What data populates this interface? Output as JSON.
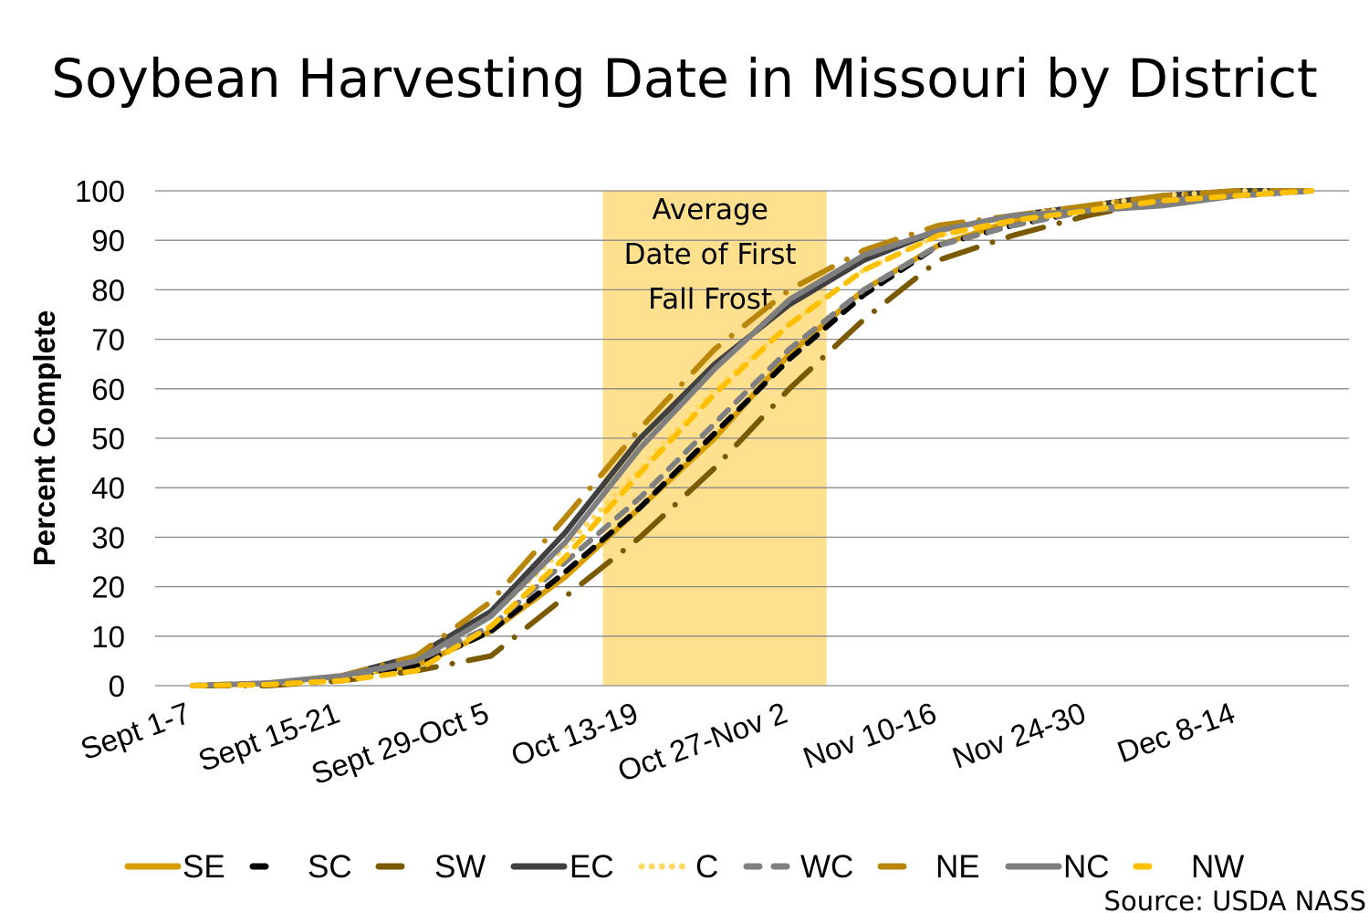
{
  "chart_data": {
    "type": "line",
    "title": "Soybean Harvesting Date in Missouri by District",
    "xlabel": "",
    "ylabel": "Percent Complete",
    "ylim": [
      0,
      100
    ],
    "yticks": [
      0,
      10,
      20,
      30,
      40,
      50,
      60,
      70,
      80,
      90,
      100
    ],
    "grid": true,
    "legend_position": "bottom",
    "categories": [
      "Sept 1-7",
      "Sept 8-14",
      "Sept 15-21",
      "Sept 22-28",
      "Sept 29-Oct 5",
      "Oct 6-12",
      "Oct 13-19",
      "Oct 20-26",
      "Oct 27-Nov 2",
      "Nov 3-9",
      "Nov 10-16",
      "Nov 17-23",
      "Nov 24-30",
      "Dec 1-7",
      "Dec 8-14",
      "Dec 15-21"
    ],
    "xtick_labels": [
      "Sept 1-7",
      "Sept 15-21",
      "Sept 29-Oct 5",
      "Oct 13-19",
      "Oct 27-Nov 2",
      "Nov 10-16",
      "Nov 24-30",
      "Dec 8-14"
    ],
    "annotation": {
      "lines": [
        "Average",
        "Date of First",
        "Fall Frost"
      ],
      "span_categories": [
        "Oct 13-19",
        "Oct 27-Nov 2"
      ],
      "color": "#FFE08F"
    },
    "series": [
      {
        "name": "SE",
        "color": "#D89E00",
        "dash": "solid",
        "values": [
          0,
          0.5,
          2,
          4,
          11,
          22,
          36,
          50,
          67,
          80,
          89,
          94,
          97,
          99,
          100,
          100
        ]
      },
      {
        "name": "SC",
        "color": "#000000",
        "dash": "dash",
        "values": [
          0,
          0.3,
          1.5,
          4,
          11,
          23,
          36,
          51,
          66,
          79,
          89,
          93,
          96,
          98,
          99,
          100
        ]
      },
      {
        "name": "SW",
        "color": "#7A5A00",
        "dash": "longdashdot",
        "values": [
          0,
          0,
          1,
          3,
          6,
          18,
          30,
          44,
          60,
          74,
          86,
          91,
          95,
          98,
          99,
          100
        ]
      },
      {
        "name": "EC",
        "color": "#404040",
        "dash": "solid",
        "values": [
          0,
          0.5,
          2,
          6,
          15,
          31,
          50,
          65,
          77,
          86,
          92,
          95,
          97,
          99,
          100,
          100
        ]
      },
      {
        "name": "C",
        "color": "#FFD966",
        "dash": "dot",
        "values": [
          0,
          0.3,
          1.5,
          5,
          14,
          28,
          44,
          60,
          73,
          84,
          91,
          95,
          97,
          99,
          100,
          100
        ]
      },
      {
        "name": "WC",
        "color": "#808080",
        "dash": "dash",
        "values": [
          0,
          0.3,
          1.5,
          5,
          12,
          25,
          38,
          53,
          68,
          80,
          89,
          93,
          96,
          98,
          99,
          100
        ]
      },
      {
        "name": "NE",
        "color": "#B8860B",
        "dash": "longdashdot",
        "values": [
          0,
          0.5,
          2,
          6,
          17,
          34,
          52,
          68,
          80,
          88,
          93,
          95,
          97,
          99,
          100,
          100
        ]
      },
      {
        "name": "NC",
        "color": "#7F7F7F",
        "dash": "solid",
        "values": [
          0,
          0.5,
          2,
          5,
          14,
          29,
          48,
          64,
          78,
          87,
          92,
          95,
          96,
          97,
          99,
          100
        ]
      },
      {
        "name": "NW",
        "color": "#FFC000",
        "dash": "dash",
        "values": [
          0,
          0.2,
          1,
          3,
          12,
          26,
          43,
          59,
          73,
          84,
          91,
          94,
          96,
          98,
          99,
          100
        ]
      }
    ],
    "source": "Source: USDA NASS"
  }
}
